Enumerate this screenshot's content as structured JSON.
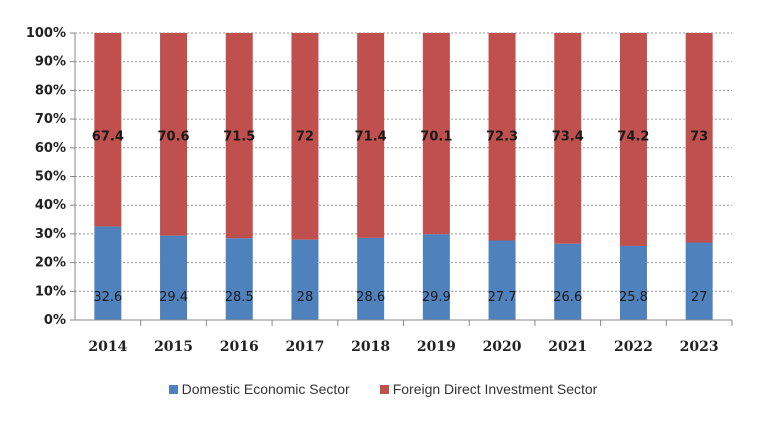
{
  "chart_data": {
    "type": "bar",
    "stacked": true,
    "percent_stacked": true,
    "categories": [
      "2014",
      "2015",
      "2016",
      "2017",
      "2018",
      "2019",
      "2020",
      "2021",
      "2022",
      "2023"
    ],
    "series": [
      {
        "name": "Domestic Economic Sector",
        "color": "#4f81bd",
        "values": [
          32.6,
          29.4,
          28.5,
          28,
          28.6,
          29.9,
          27.7,
          26.6,
          25.8,
          27
        ],
        "labels": [
          "32.6",
          "29.4",
          "28.5",
          "28",
          "28.6",
          "29.9",
          "27.7",
          "26.6",
          "25.8",
          "27"
        ]
      },
      {
        "name": "Foreign Direct Investment Sector",
        "color": "#c0504d",
        "values": [
          67.4,
          70.6,
          71.5,
          72,
          71.4,
          70.1,
          72.3,
          73.4,
          74.2,
          73
        ],
        "labels": [
          "67.4",
          "70.6",
          "71.5",
          "72",
          "71.4",
          "70.1",
          "72.3",
          "73.4",
          "74.2",
          "73"
        ]
      }
    ],
    "y_ticks": [
      "0%",
      "10%",
      "20%",
      "30%",
      "40%",
      "50%",
      "60%",
      "70%",
      "80%",
      "90%",
      "100%"
    ],
    "ylim": [
      0,
      100
    ],
    "grid": true,
    "legend_position": "bottom"
  }
}
